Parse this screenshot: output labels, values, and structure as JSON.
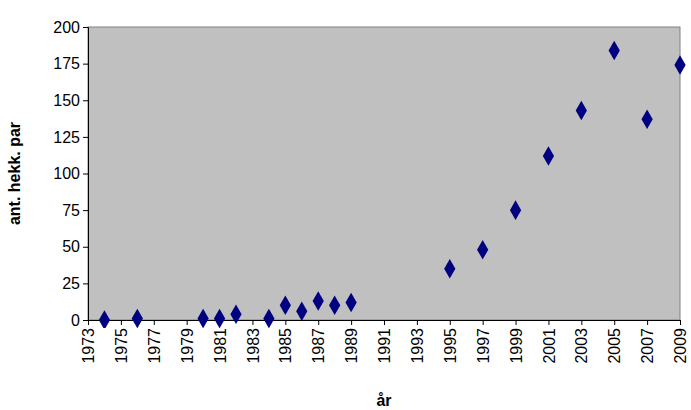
{
  "chart_data": {
    "type": "scatter",
    "x_label": "år",
    "y_label": "ant. hekk. par",
    "x": [
      1974,
      1976,
      1980,
      1981,
      1982,
      1984,
      1985,
      1986,
      1987,
      1988,
      1989,
      1995,
      1997,
      1999,
      2001,
      2003,
      2005,
      2007,
      2009
    ],
    "values": [
      0,
      1,
      1,
      1,
      4,
      1,
      10,
      6,
      13,
      10,
      12,
      35,
      48,
      75,
      112,
      143,
      184,
      137,
      174
    ],
    "color": "#000080",
    "marker": "diamond",
    "xlim": [
      1973,
      2009
    ],
    "xticks": [
      1973,
      1975,
      1977,
      1979,
      1981,
      1983,
      1985,
      1987,
      1989,
      1991,
      1993,
      1995,
      1997,
      1999,
      2001,
      2003,
      2005,
      2007,
      2009
    ],
    "ylim": [
      0,
      200
    ],
    "yticks": [
      0,
      25,
      50,
      75,
      100,
      125,
      150,
      175,
      200
    ],
    "grid": false
  }
}
